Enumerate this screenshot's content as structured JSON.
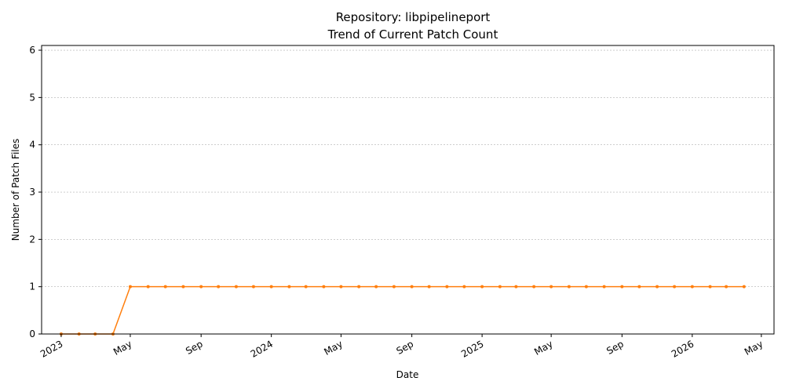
{
  "chart_data": {
    "type": "line",
    "title_lines": [
      "Repository: libpipelineport",
      "Trend of Current Patch Count"
    ],
    "xlabel": "Date",
    "ylabel": "Number of Patch Files",
    "x_axis_type": "date",
    "xlim": [
      "2022-11-28",
      "2026-05-23"
    ],
    "ylim": [
      0,
      6.1
    ],
    "yticks": [
      0,
      1,
      2,
      3,
      4,
      5,
      6
    ],
    "xticks": [
      {
        "date": "2023-01-01",
        "label": "2023"
      },
      {
        "date": "2023-05-01",
        "label": "May"
      },
      {
        "date": "2023-09-01",
        "label": "Sep"
      },
      {
        "date": "2024-01-01",
        "label": "2024"
      },
      {
        "date": "2024-05-01",
        "label": "May"
      },
      {
        "date": "2024-09-01",
        "label": "Sep"
      },
      {
        "date": "2025-01-01",
        "label": "2025"
      },
      {
        "date": "2025-05-01",
        "label": "May"
      },
      {
        "date": "2025-09-01",
        "label": "Sep"
      },
      {
        "date": "2026-01-01",
        "label": "2026"
      },
      {
        "date": "2026-05-01",
        "label": "May"
      }
    ],
    "grid": "y-dashed",
    "series": [
      {
        "color": "#ff7f0e",
        "x": [
          "2023-01-01",
          "2023-02-01",
          "2023-03-01",
          "2023-04-01",
          "2023-05-01",
          "2023-06-01",
          "2023-07-01",
          "2023-08-01",
          "2023-09-01",
          "2023-10-01",
          "2023-11-01",
          "2023-12-01",
          "2024-01-01",
          "2024-02-01",
          "2024-03-01",
          "2024-04-01",
          "2024-05-01",
          "2024-06-01",
          "2024-07-01",
          "2024-08-01",
          "2024-09-01",
          "2024-10-01",
          "2024-11-01",
          "2024-12-01",
          "2025-01-01",
          "2025-02-01",
          "2025-03-01",
          "2025-04-01",
          "2025-05-01",
          "2025-06-01",
          "2025-07-01",
          "2025-08-01",
          "2025-09-01",
          "2025-10-01",
          "2025-11-01",
          "2025-12-01",
          "2026-01-01",
          "2026-02-01",
          "2026-03-01",
          "2026-04-01"
        ],
        "values": [
          0,
          0,
          0,
          0,
          1,
          1,
          1,
          1,
          1,
          1,
          1,
          1,
          1,
          1,
          1,
          1,
          1,
          1,
          1,
          1,
          1,
          1,
          1,
          1,
          1,
          1,
          1,
          1,
          1,
          1,
          1,
          1,
          1,
          1,
          1,
          1,
          1,
          1,
          1,
          1
        ]
      }
    ]
  }
}
